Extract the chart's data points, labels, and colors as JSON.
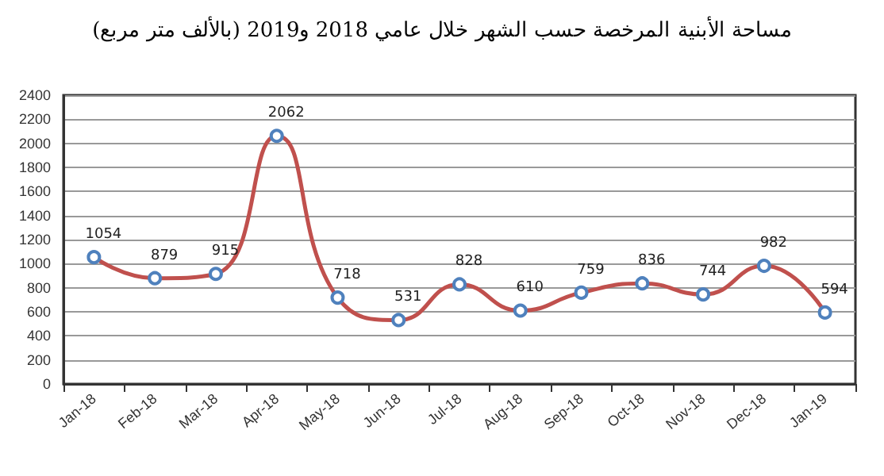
{
  "chart_data": {
    "type": "line",
    "title": "مساحة الأبنية المرخصة حسب الشهر خلال عامي 2018 و2019 (بالألف متر مربع)",
    "categories": [
      "Jan-18",
      "Feb-18",
      "Mar-18",
      "Apr-18",
      "May-18",
      "Jun-18",
      "Jul-18",
      "Aug-18",
      "Sep-18",
      "Oct-18",
      "Nov-18",
      "Dec-18",
      "Jan-19"
    ],
    "series": [
      {
        "color": "#c0504d",
        "values": [
          1054,
          879,
          915,
          2062,
          718,
          531,
          828,
          610,
          759,
          836,
          744,
          982,
          594
        ]
      }
    ],
    "ylim": [
      0,
      2400
    ],
    "yticks": [
      0,
      200,
      400,
      600,
      800,
      1000,
      1200,
      1400,
      1600,
      1800,
      2000,
      2200,
      2400
    ],
    "grid": "y",
    "marker": "circle",
    "line_style": "solid",
    "data_labels": true
  }
}
